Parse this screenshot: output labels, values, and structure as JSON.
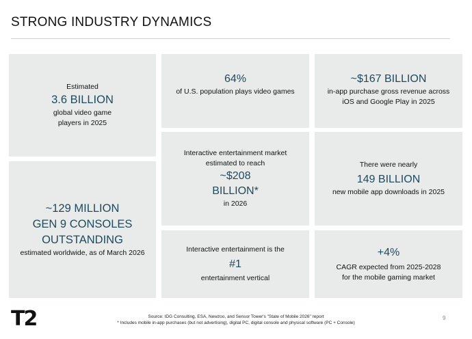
{
  "slide": {
    "title": "STRONG INDUSTRY DYNAMICS",
    "page_number": "9",
    "logo_text": "T2"
  },
  "tiles": {
    "players": {
      "pre": "Estimated",
      "big": "3.6 BILLION",
      "post1": "global video game",
      "post2": "players in 2025"
    },
    "consoles": {
      "big1": "~129 MILLION",
      "big2": "GEN 9 CONSOLES",
      "big3": "OUTSTANDING",
      "post": "estimated worldwide, as of March 2026"
    },
    "us_population": {
      "big": "64%",
      "post": "of U.S. population plays video games"
    },
    "market": {
      "pre1": "Interactive entertainment market",
      "pre2": "estimated to reach",
      "big1": "~$208",
      "big2": "BILLION*",
      "post": "in 2026"
    },
    "vertical": {
      "pre": "Interactive entertainment is the",
      "big": "#1",
      "post": "entertainment vertical"
    },
    "in_app": {
      "big": "~$167 BILLION",
      "post1": "in-app purchase gross revenue across",
      "post2": "iOS and Google Play in 2025"
    },
    "downloads": {
      "pre": "There were nearly",
      "big": "149 BILLION",
      "post": "new mobile app downloads in 2025"
    },
    "cagr": {
      "big": "+4%",
      "post1": "CAGR expected from 2025-2028",
      "post2": "for the mobile gaming market"
    }
  },
  "footer": {
    "source": "Source:  IDG Consulting, ESA, Newzoo, and Sensor Tower's \"State of Mobile 2026\" report",
    "note": "*  Includes mobile in-app purchases (but not advertising), digital PC, digital console and physical software (PC + Console)"
  },
  "colors": {
    "tile_bg": "#e9eaea",
    "accent_text": "#1f4a5c"
  }
}
